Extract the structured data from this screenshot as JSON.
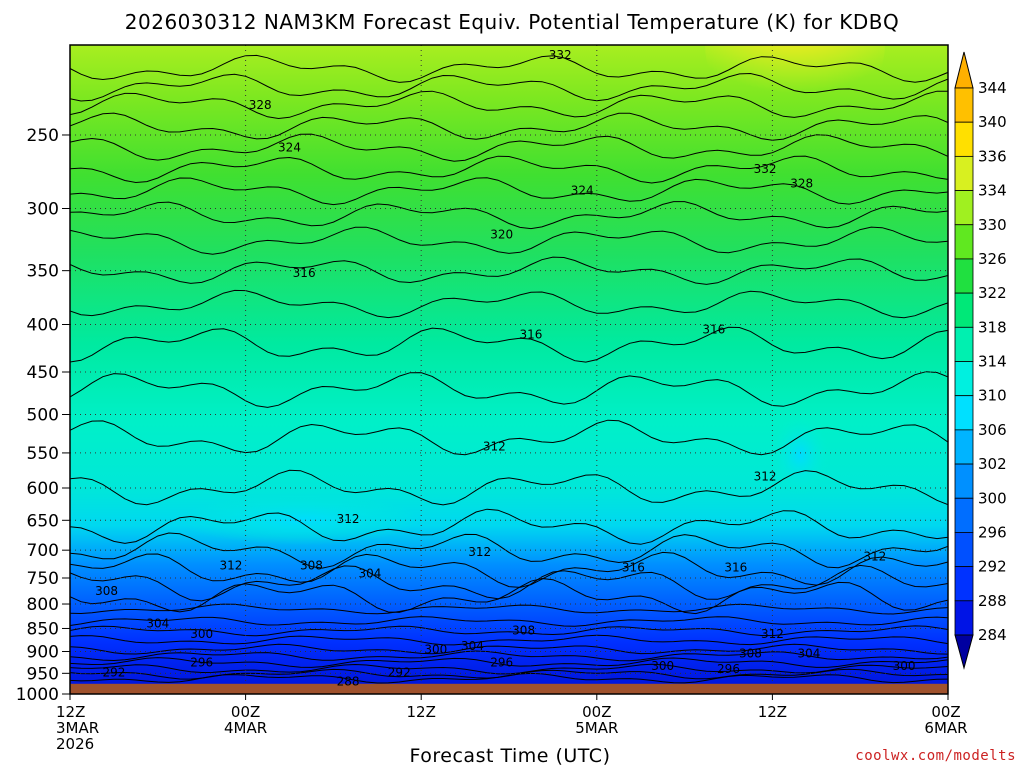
{
  "chart_data": {
    "type": "heatmap",
    "title": "2026030312 NAM3KM Forecast Equiv. Potential Temperature (K) for KDBQ",
    "xlabel": "Forecast Time (UTC)",
    "ylabel": "",
    "y_axis": {
      "scale": "pressure-log",
      "range": [
        1000,
        200
      ],
      "ticks": [
        250,
        300,
        350,
        400,
        450,
        500,
        550,
        600,
        650,
        700,
        750,
        800,
        850,
        900,
        950,
        1000
      ],
      "tick_labels": [
        "250",
        "300",
        "350",
        "400",
        "450",
        "500",
        "550",
        "600",
        "650",
        "700",
        "750",
        "800",
        "850",
        "900",
        "950",
        "1000"
      ],
      "grid": true
    },
    "x_axis": {
      "range_hours": [
        0,
        60
      ],
      "ticks": [
        {
          "hour": 0,
          "lines": [
            "12Z",
            "3MAR",
            "2026"
          ]
        },
        {
          "hour": 12,
          "lines": [
            "00Z",
            "4MAR"
          ]
        },
        {
          "hour": 24,
          "lines": [
            "12Z"
          ]
        },
        {
          "hour": 36,
          "lines": [
            "00Z",
            "5MAR"
          ]
        },
        {
          "hour": 48,
          "lines": [
            "12Z"
          ]
        },
        {
          "hour": 60,
          "lines": [
            "00Z",
            "6MAR"
          ]
        }
      ],
      "grid": true
    },
    "colorbar": {
      "levels": [
        284,
        288,
        292,
        296,
        300,
        302,
        306,
        310,
        314,
        318,
        322,
        326,
        330,
        334,
        336,
        340,
        344
      ],
      "colors": [
        "#0000c8",
        "#0014e6",
        "#0032ff",
        "#0050ff",
        "#006eff",
        "#0090ff",
        "#00b4ff",
        "#00e0ff",
        "#00f0e0",
        "#00f0b0",
        "#00e878",
        "#20e040",
        "#60e820",
        "#a0f020",
        "#d8f020",
        "#ffe000",
        "#ffc000"
      ],
      "bottom_color": "#0000a0",
      "top_color": "#ffb000"
    },
    "ground_color": "#a0522d",
    "ground_top_pressure": 975,
    "contour_labels": [
      {
        "text": "332",
        "hour": 33.5,
        "p": 205
      },
      {
        "text": "328",
        "hour": 13,
        "p": 232
      },
      {
        "text": "324",
        "hour": 15,
        "p": 258
      },
      {
        "text": "332",
        "hour": 47.5,
        "p": 272
      },
      {
        "text": "328",
        "hour": 50,
        "p": 282
      },
      {
        "text": "324",
        "hour": 35,
        "p": 287
      },
      {
        "text": "320",
        "hour": 29.5,
        "p": 320
      },
      {
        "text": "316",
        "hour": 16,
        "p": 352
      },
      {
        "text": "316",
        "hour": 31.5,
        "p": 410
      },
      {
        "text": "316",
        "hour": 44,
        "p": 405
      },
      {
        "text": "312",
        "hour": 29,
        "p": 541
      },
      {
        "text": "312",
        "hour": 47.5,
        "p": 583
      },
      {
        "text": "312",
        "hour": 19,
        "p": 648
      },
      {
        "text": "312",
        "hour": 28,
        "p": 703
      },
      {
        "text": "312",
        "hour": 55,
        "p": 711
      },
      {
        "text": "312",
        "hour": 11,
        "p": 727
      },
      {
        "text": "308",
        "hour": 16.5,
        "p": 727
      },
      {
        "text": "304",
        "hour": 20.5,
        "p": 742
      },
      {
        "text": "316",
        "hour": 38.5,
        "p": 731
      },
      {
        "text": "316",
        "hour": 45.5,
        "p": 731
      },
      {
        "text": "308",
        "hour": 2.5,
        "p": 775
      },
      {
        "text": "304",
        "hour": 6,
        "p": 840
      },
      {
        "text": "300",
        "hour": 9,
        "p": 862
      },
      {
        "text": "308",
        "hour": 31,
        "p": 854
      },
      {
        "text": "312",
        "hour": 48,
        "p": 862
      },
      {
        "text": "300",
        "hour": 25,
        "p": 895
      },
      {
        "text": "304",
        "hour": 27.5,
        "p": 888
      },
      {
        "text": "296",
        "hour": 9,
        "p": 925
      },
      {
        "text": "296",
        "hour": 29.5,
        "p": 925
      },
      {
        "text": "308",
        "hour": 46.5,
        "p": 905
      },
      {
        "text": "304",
        "hour": 50.5,
        "p": 905
      },
      {
        "text": "300",
        "hour": 40.5,
        "p": 933
      },
      {
        "text": "296",
        "hour": 45,
        "p": 940
      },
      {
        "text": "300",
        "hour": 57,
        "p": 933
      },
      {
        "text": "292",
        "hour": 3,
        "p": 948
      },
      {
        "text": "292",
        "hour": 22.5,
        "p": 948
      },
      {
        "text": "288",
        "hour": 19,
        "p": 970
      }
    ]
  },
  "credit": "coolwx.com/modelts"
}
